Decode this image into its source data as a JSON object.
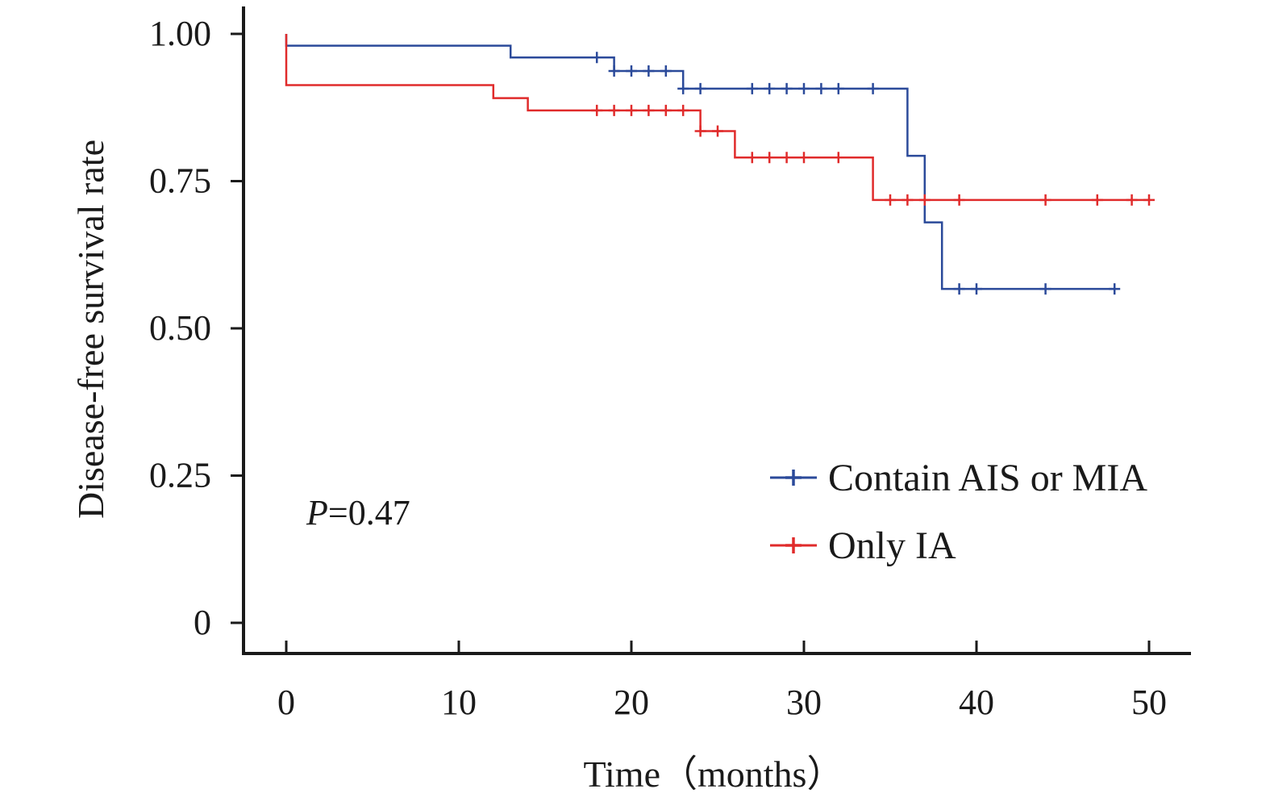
{
  "chart_data": {
    "type": "line",
    "subtype": "kaplan-meier-step",
    "title": "",
    "xlabel": "Time（months）",
    "ylabel": "Disease-free survival rate",
    "xlim": [
      0,
      50
    ],
    "ylim": [
      0,
      1
    ],
    "x_ticks": [
      0,
      10,
      20,
      30,
      40,
      50
    ],
    "x_tick_labels": [
      "0",
      "10",
      "20",
      "30",
      "40",
      "50"
    ],
    "y_ticks": [
      0,
      0.25,
      0.5,
      0.75,
      1.0
    ],
    "y_tick_labels": [
      "0",
      "0.25",
      "0.50",
      "0.75",
      "1.00"
    ],
    "grid": false,
    "legend_position": "bottom-right",
    "annotation": {
      "italic": "P",
      "text": "=0.47"
    },
    "series": [
      {
        "name": "Contain AIS or MIA",
        "color": "#2b4a9a",
        "steps": [
          [
            0,
            0.98
          ],
          [
            13,
            0.96
          ],
          [
            19,
            0.937
          ],
          [
            23,
            0.907
          ],
          [
            36,
            0.793
          ],
          [
            37,
            0.68
          ],
          [
            38,
            0.567
          ],
          [
            48,
            0.567
          ]
        ],
        "censored": [
          18,
          19,
          20,
          21,
          22,
          23,
          24,
          27,
          28,
          29,
          30,
          31,
          32,
          34,
          39,
          40,
          44,
          48
        ]
      },
      {
        "name": "Only IA",
        "color": "#e02b2b",
        "steps": [
          [
            0,
            0.913
          ],
          [
            12,
            0.891
          ],
          [
            14,
            0.87
          ],
          [
            24,
            0.835
          ],
          [
            26,
            0.79
          ],
          [
            34,
            0.718
          ],
          [
            50,
            0.718
          ]
        ],
        "censored": [
          18,
          19,
          20,
          21,
          22,
          23,
          24,
          25,
          27,
          28,
          29,
          30,
          32,
          35,
          36,
          37,
          39,
          44,
          47,
          49,
          50
        ]
      }
    ]
  }
}
